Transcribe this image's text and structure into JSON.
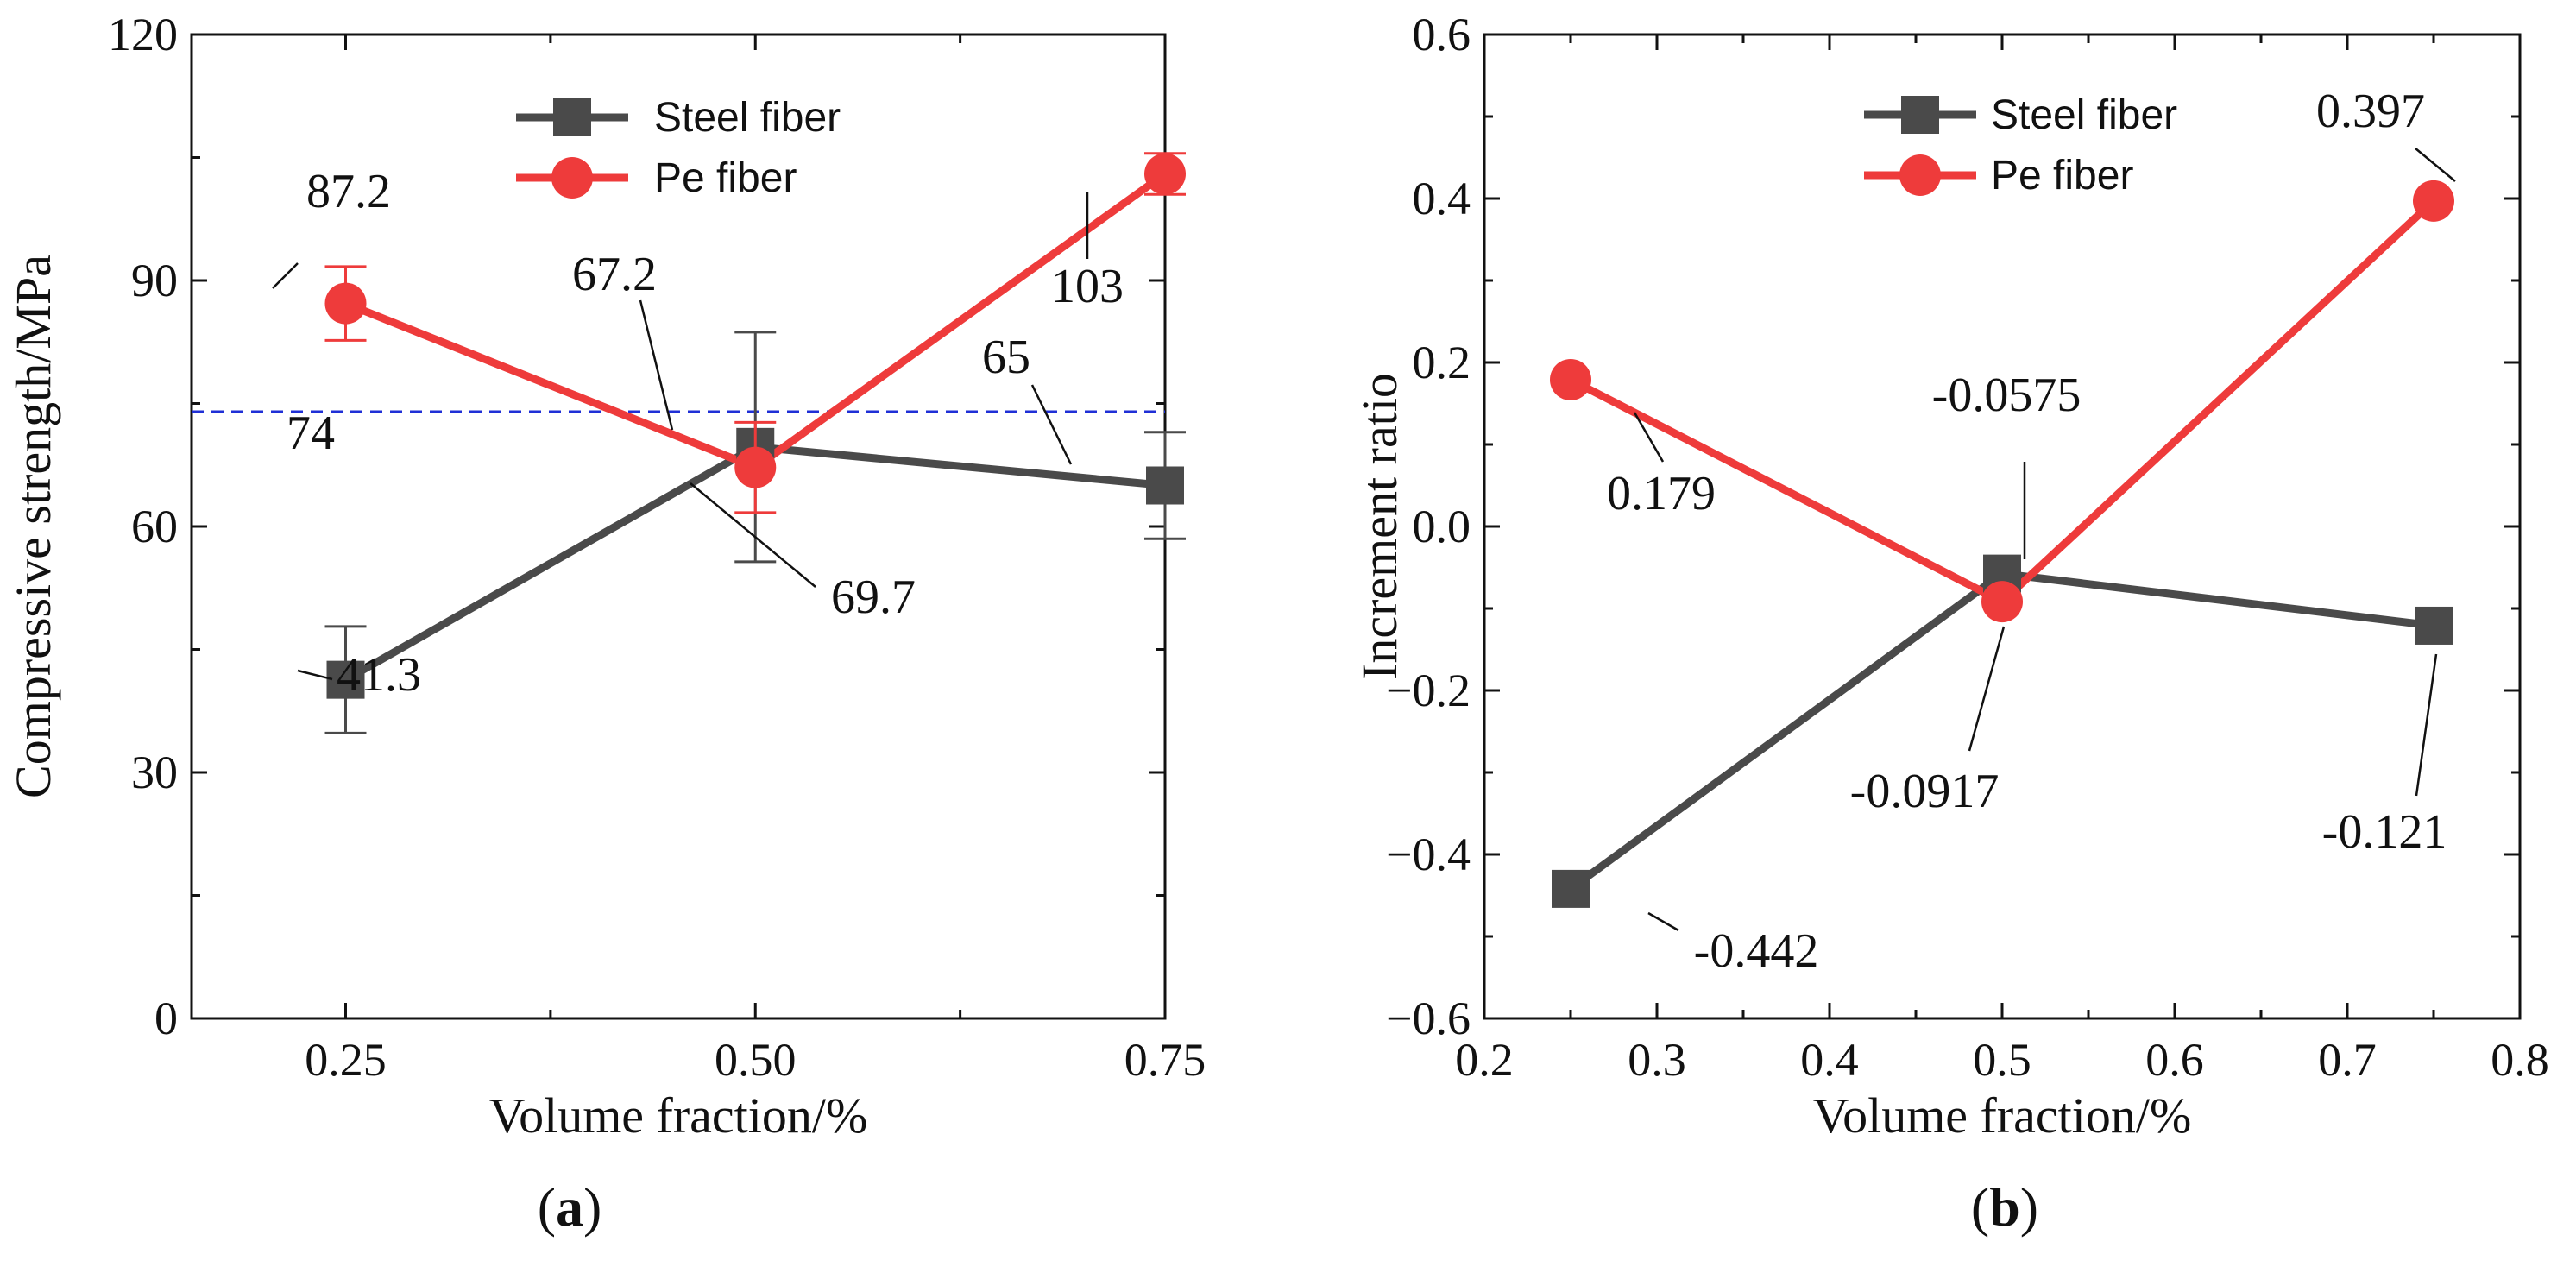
{
  "chart_data": [
    {
      "panel": "a",
      "type": "line",
      "xlabel": "Volume fraction/%",
      "ylabel": "Compressive strength/MPa",
      "x_categories": [
        "0.25",
        "0.50",
        "0.75"
      ],
      "x": [
        0.25,
        0.5,
        0.75
      ],
      "xlim": [
        0.156,
        0.75
      ],
      "ylim": [
        0,
        120
      ],
      "yticks": [
        0,
        30,
        60,
        90,
        120
      ],
      "reference_line": {
        "value": 74,
        "label": "74",
        "color": "#1f2fd6",
        "style": "dashed"
      },
      "series": [
        {
          "name": "Steel fiber",
          "marker": "square",
          "color": "#4a4a4a",
          "values": [
            41.3,
            69.7,
            65
          ],
          "errors": [
            6.5,
            14,
            6.5
          ],
          "labels": [
            "41.3",
            "69.7",
            "65"
          ]
        },
        {
          "name": "Pe fiber",
          "marker": "circle",
          "color": "#ee3b3b",
          "values": [
            87.2,
            67.2,
            103
          ],
          "errors": [
            4.5,
            5.5,
            2.5
          ],
          "labels": [
            "87.2",
            "67.2",
            "103"
          ]
        }
      ],
      "legend": {
        "position": "top-center",
        "entries": [
          "Steel fiber",
          "Pe fiber"
        ]
      },
      "caption_letter": "a"
    },
    {
      "panel": "b",
      "type": "line",
      "xlabel": "Volume fraction/%",
      "ylabel": "Increment ratio",
      "x": [
        0.25,
        0.5,
        0.75
      ],
      "xlim": [
        0.2,
        0.8
      ],
      "xticks": [
        0.2,
        0.3,
        0.4,
        0.5,
        0.6,
        0.7,
        0.8
      ],
      "xtick_labels": [
        "0.2",
        "0.3",
        "0.4",
        "0.5",
        "0.6",
        "0.7",
        "0.8"
      ],
      "ylim": [
        -0.6,
        0.6
      ],
      "yticks": [
        -0.6,
        -0.4,
        -0.2,
        0.0,
        0.2,
        0.4,
        0.6
      ],
      "ytick_labels": [
        "−0.6",
        "−0.4",
        "−0.2",
        "0.0",
        "0.2",
        "0.4",
        "0.6"
      ],
      "series": [
        {
          "name": "Steel fiber",
          "marker": "square",
          "color": "#4a4a4a",
          "values": [
            -0.442,
            -0.0575,
            -0.121
          ],
          "labels": [
            "-0.442",
            "-0.0575",
            "-0.121"
          ]
        },
        {
          "name": "Pe fiber",
          "marker": "circle",
          "color": "#ee3b3b",
          "values": [
            0.179,
            -0.0917,
            0.397
          ],
          "labels": [
            "0.179",
            "-0.0917",
            "0.397"
          ]
        }
      ],
      "legend": {
        "position": "top-center",
        "entries": [
          "Steel fiber",
          "Pe fiber"
        ]
      },
      "caption_letter": "b"
    }
  ]
}
